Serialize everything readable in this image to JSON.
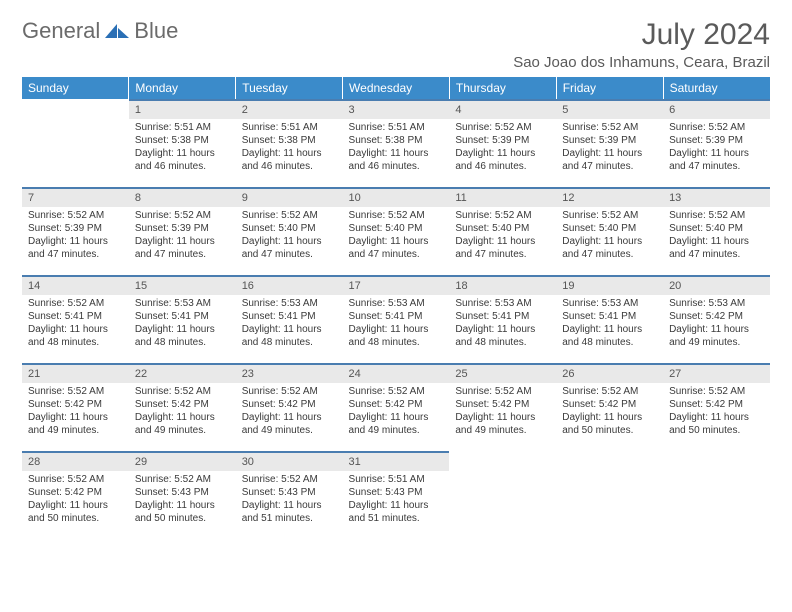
{
  "brand": {
    "word1": "General",
    "word2": "Blue"
  },
  "colors": {
    "header_bg": "#3b8bca",
    "daynum_bg": "#e9e9e9",
    "daynum_border": "#4a7db0",
    "text": "#3a3a3a",
    "title_text": "#5a5a5a",
    "logo_gray": "#6b6b6b",
    "logo_blue": "#2a6fb5"
  },
  "title": "July 2024",
  "location": "Sao Joao dos Inhamuns, Ceara, Brazil",
  "weekdays": [
    "Sunday",
    "Monday",
    "Tuesday",
    "Wednesday",
    "Thursday",
    "Friday",
    "Saturday"
  ],
  "layout": {
    "first_weekday_index": 1,
    "days_in_month": 31,
    "rows": 5,
    "cols": 7
  },
  "typography": {
    "title_fontsize": 30,
    "location_fontsize": 15,
    "weekday_fontsize": 12,
    "daynum_fontsize": 11,
    "body_fontsize": 10
  },
  "days": {
    "1": {
      "sunrise": "Sunrise: 5:51 AM",
      "sunset": "Sunset: 5:38 PM",
      "daylight": "Daylight: 11 hours and 46 minutes."
    },
    "2": {
      "sunrise": "Sunrise: 5:51 AM",
      "sunset": "Sunset: 5:38 PM",
      "daylight": "Daylight: 11 hours and 46 minutes."
    },
    "3": {
      "sunrise": "Sunrise: 5:51 AM",
      "sunset": "Sunset: 5:38 PM",
      "daylight": "Daylight: 11 hours and 46 minutes."
    },
    "4": {
      "sunrise": "Sunrise: 5:52 AM",
      "sunset": "Sunset: 5:39 PM",
      "daylight": "Daylight: 11 hours and 46 minutes."
    },
    "5": {
      "sunrise": "Sunrise: 5:52 AM",
      "sunset": "Sunset: 5:39 PM",
      "daylight": "Daylight: 11 hours and 47 minutes."
    },
    "6": {
      "sunrise": "Sunrise: 5:52 AM",
      "sunset": "Sunset: 5:39 PM",
      "daylight": "Daylight: 11 hours and 47 minutes."
    },
    "7": {
      "sunrise": "Sunrise: 5:52 AM",
      "sunset": "Sunset: 5:39 PM",
      "daylight": "Daylight: 11 hours and 47 minutes."
    },
    "8": {
      "sunrise": "Sunrise: 5:52 AM",
      "sunset": "Sunset: 5:39 PM",
      "daylight": "Daylight: 11 hours and 47 minutes."
    },
    "9": {
      "sunrise": "Sunrise: 5:52 AM",
      "sunset": "Sunset: 5:40 PM",
      "daylight": "Daylight: 11 hours and 47 minutes."
    },
    "10": {
      "sunrise": "Sunrise: 5:52 AM",
      "sunset": "Sunset: 5:40 PM",
      "daylight": "Daylight: 11 hours and 47 minutes."
    },
    "11": {
      "sunrise": "Sunrise: 5:52 AM",
      "sunset": "Sunset: 5:40 PM",
      "daylight": "Daylight: 11 hours and 47 minutes."
    },
    "12": {
      "sunrise": "Sunrise: 5:52 AM",
      "sunset": "Sunset: 5:40 PM",
      "daylight": "Daylight: 11 hours and 47 minutes."
    },
    "13": {
      "sunrise": "Sunrise: 5:52 AM",
      "sunset": "Sunset: 5:40 PM",
      "daylight": "Daylight: 11 hours and 47 minutes."
    },
    "14": {
      "sunrise": "Sunrise: 5:52 AM",
      "sunset": "Sunset: 5:41 PM",
      "daylight": "Daylight: 11 hours and 48 minutes."
    },
    "15": {
      "sunrise": "Sunrise: 5:53 AM",
      "sunset": "Sunset: 5:41 PM",
      "daylight": "Daylight: 11 hours and 48 minutes."
    },
    "16": {
      "sunrise": "Sunrise: 5:53 AM",
      "sunset": "Sunset: 5:41 PM",
      "daylight": "Daylight: 11 hours and 48 minutes."
    },
    "17": {
      "sunrise": "Sunrise: 5:53 AM",
      "sunset": "Sunset: 5:41 PM",
      "daylight": "Daylight: 11 hours and 48 minutes."
    },
    "18": {
      "sunrise": "Sunrise: 5:53 AM",
      "sunset": "Sunset: 5:41 PM",
      "daylight": "Daylight: 11 hours and 48 minutes."
    },
    "19": {
      "sunrise": "Sunrise: 5:53 AM",
      "sunset": "Sunset: 5:41 PM",
      "daylight": "Daylight: 11 hours and 48 minutes."
    },
    "20": {
      "sunrise": "Sunrise: 5:53 AM",
      "sunset": "Sunset: 5:42 PM",
      "daylight": "Daylight: 11 hours and 49 minutes."
    },
    "21": {
      "sunrise": "Sunrise: 5:52 AM",
      "sunset": "Sunset: 5:42 PM",
      "daylight": "Daylight: 11 hours and 49 minutes."
    },
    "22": {
      "sunrise": "Sunrise: 5:52 AM",
      "sunset": "Sunset: 5:42 PM",
      "daylight": "Daylight: 11 hours and 49 minutes."
    },
    "23": {
      "sunrise": "Sunrise: 5:52 AM",
      "sunset": "Sunset: 5:42 PM",
      "daylight": "Daylight: 11 hours and 49 minutes."
    },
    "24": {
      "sunrise": "Sunrise: 5:52 AM",
      "sunset": "Sunset: 5:42 PM",
      "daylight": "Daylight: 11 hours and 49 minutes."
    },
    "25": {
      "sunrise": "Sunrise: 5:52 AM",
      "sunset": "Sunset: 5:42 PM",
      "daylight": "Daylight: 11 hours and 49 minutes."
    },
    "26": {
      "sunrise": "Sunrise: 5:52 AM",
      "sunset": "Sunset: 5:42 PM",
      "daylight": "Daylight: 11 hours and 50 minutes."
    },
    "27": {
      "sunrise": "Sunrise: 5:52 AM",
      "sunset": "Sunset: 5:42 PM",
      "daylight": "Daylight: 11 hours and 50 minutes."
    },
    "28": {
      "sunrise": "Sunrise: 5:52 AM",
      "sunset": "Sunset: 5:42 PM",
      "daylight": "Daylight: 11 hours and 50 minutes."
    },
    "29": {
      "sunrise": "Sunrise: 5:52 AM",
      "sunset": "Sunset: 5:43 PM",
      "daylight": "Daylight: 11 hours and 50 minutes."
    },
    "30": {
      "sunrise": "Sunrise: 5:52 AM",
      "sunset": "Sunset: 5:43 PM",
      "daylight": "Daylight: 11 hours and 51 minutes."
    },
    "31": {
      "sunrise": "Sunrise: 5:51 AM",
      "sunset": "Sunset: 5:43 PM",
      "daylight": "Daylight: 11 hours and 51 minutes."
    }
  }
}
